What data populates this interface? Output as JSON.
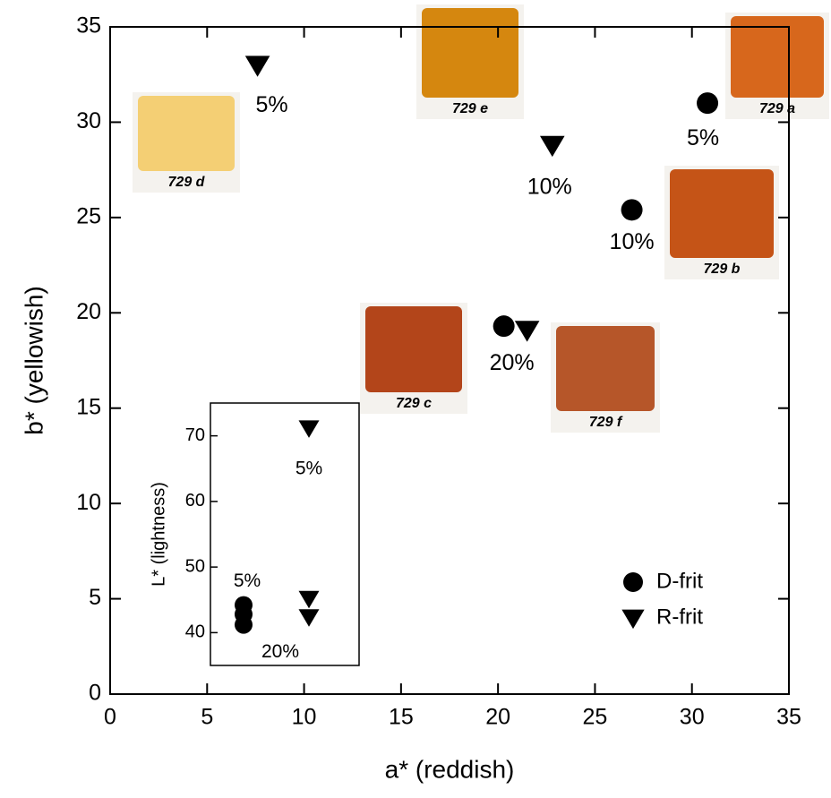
{
  "chart_data": [
    {
      "type": "scatter",
      "xlabel": "a* (reddish)",
      "ylabel": "b* (yellowish)",
      "xlim": [
        0,
        35
      ],
      "ylim": [
        0,
        35
      ],
      "xticks": [
        0,
        5,
        10,
        15,
        20,
        25,
        30,
        35
      ],
      "yticks": [
        0,
        5,
        10,
        15,
        20,
        25,
        30,
        35
      ],
      "legend": "lower right",
      "series": [
        {
          "name": "D-frit",
          "marker": "circle",
          "color": "#000000",
          "x": [
            30.8,
            26.9,
            20.3
          ],
          "values": [
            31.0,
            25.4,
            19.3
          ],
          "point_labels": [
            "5%",
            "10%",
            "20%"
          ]
        },
        {
          "name": "R-frit",
          "marker": "triangle",
          "color": "#000000",
          "x": [
            7.6,
            22.8,
            21.5
          ],
          "values": [
            33.0,
            28.8,
            19.1
          ],
          "point_labels": [
            "5%",
            "10%",
            null
          ]
        }
      ],
      "swatches": [
        {
          "label": "729 d",
          "color": "#f4cf74"
        },
        {
          "label": "729 e",
          "color": "#d5870f"
        },
        {
          "label": "729 a",
          "color": "#d7671c"
        },
        {
          "label": "729 b",
          "color": "#c55417"
        },
        {
          "label": "729 c",
          "color": "#b3451a"
        },
        {
          "label": "729 f",
          "color": "#b65629"
        }
      ]
    },
    {
      "type": "scatter",
      "ylabel": "L* (lightness)",
      "ylim": [
        35,
        75
      ],
      "yticks": [
        40,
        50,
        60,
        70
      ],
      "series": [
        {
          "name": "D-frit",
          "marker": "circle",
          "color": "#000000",
          "values": [
            44.2,
            42.8,
            41.2
          ],
          "point_labels": [
            "5%",
            null,
            "20%"
          ]
        },
        {
          "name": "R-frit",
          "marker": "triangle",
          "color": "#000000",
          "values": [
            71.2,
            45.2,
            42.4
          ],
          "point_labels": [
            "5%",
            null,
            null
          ]
        }
      ]
    }
  ]
}
